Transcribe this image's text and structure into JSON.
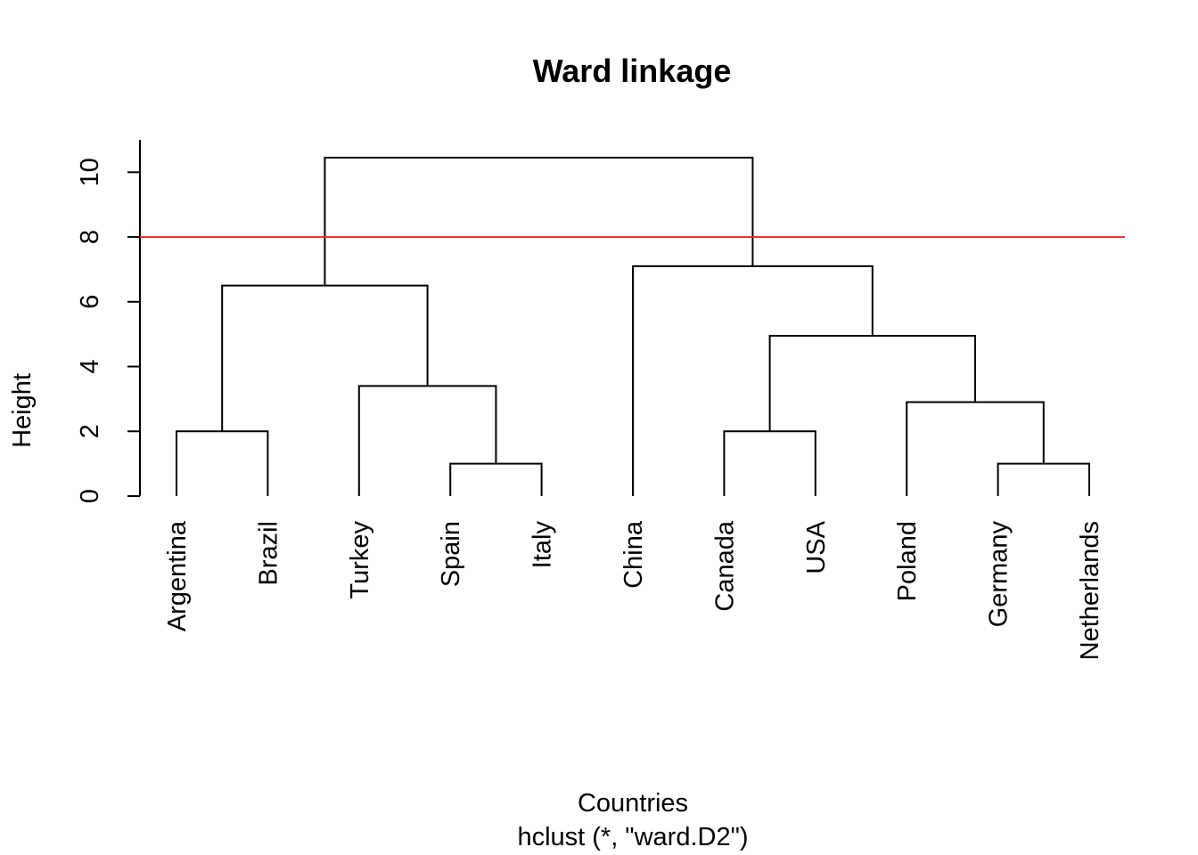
{
  "chart_data": {
    "type": "dendrogram",
    "title": "Ward linkage",
    "xlabel": "Countries",
    "sublabel": "hclust (*, \"ward.D2\")",
    "ylabel": "Height",
    "ylim": [
      0,
      11
    ],
    "yticks": [
      0,
      2,
      4,
      6,
      8,
      10
    ],
    "leaves": [
      "Argentina",
      "Brazil",
      "Turkey",
      "Spain",
      "Italy",
      "China",
      "Canada",
      "USA",
      "Poland",
      "Germany",
      "Netherlands"
    ],
    "merges": [
      {
        "a": "Germany",
        "b": "Netherlands",
        "height": 1.0
      },
      {
        "a": "Spain",
        "b": "Italy",
        "height": 1.0
      },
      {
        "a": "Argentina",
        "b": "Brazil",
        "height": 2.0
      },
      {
        "a": "Canada",
        "b": "USA",
        "height": 2.0
      },
      {
        "a": "Poland",
        "b": "m1",
        "height": 2.9
      },
      {
        "a": "Turkey",
        "b": "m2",
        "height": 3.4
      },
      {
        "a": "m4",
        "b": "m5",
        "height": 4.95
      },
      {
        "a": "m3",
        "b": "m6",
        "height": 6.5
      },
      {
        "a": "China",
        "b": "m7",
        "height": 7.1
      },
      {
        "a": "m8",
        "b": "m9",
        "height": 10.45
      }
    ],
    "cut_line": {
      "height": 8,
      "color": "#e8262a"
    },
    "grid": false,
    "colors": {
      "branch": "#000000",
      "text": "#000000"
    }
  }
}
